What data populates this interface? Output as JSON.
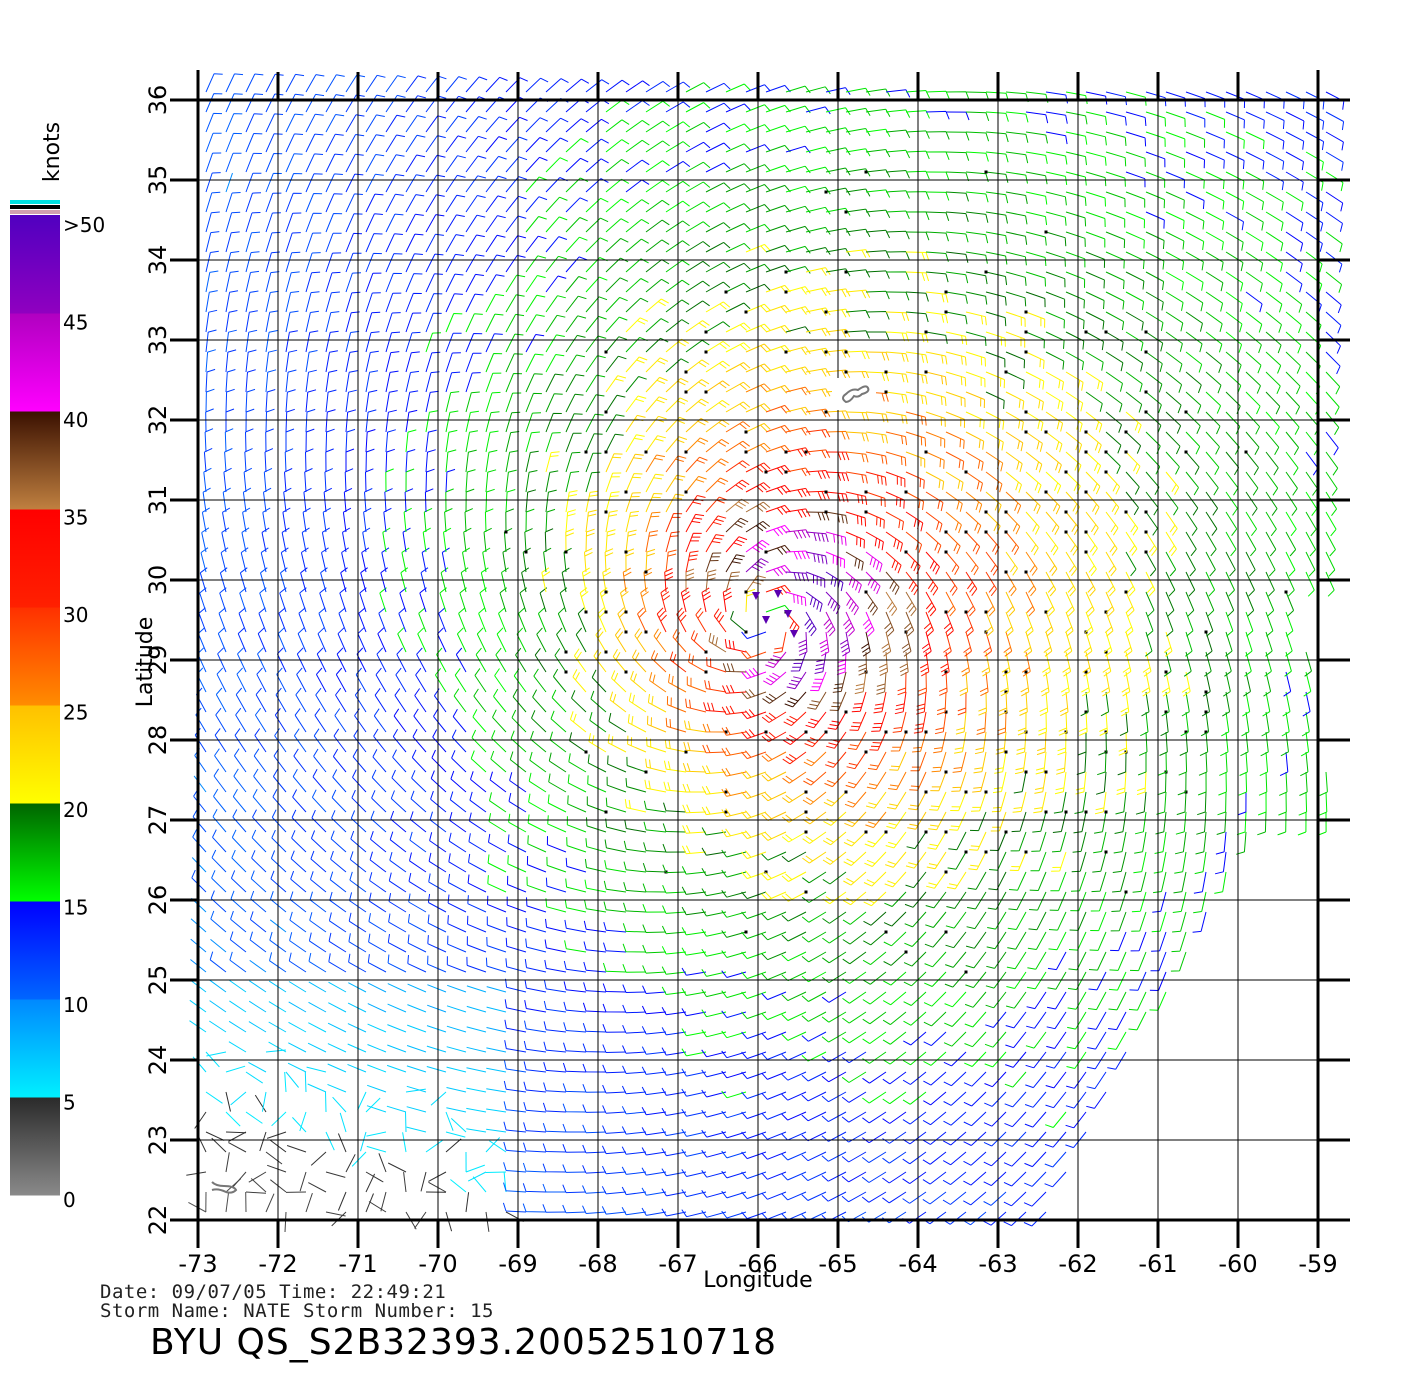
{
  "map": {
    "lon_range": [
      -73,
      -59
    ],
    "lat_range": [
      22,
      36
    ],
    "x_axis_label": "Longitude",
    "y_axis_label": "Latitude",
    "x_ticks": [
      "-73",
      "-72",
      "-71",
      "-70",
      "-69",
      "-68",
      "-67",
      "-66",
      "-65",
      "-64",
      "-63",
      "-62",
      "-61",
      "-60",
      "-59"
    ],
    "y_ticks": [
      "22",
      "23",
      "24",
      "25",
      "26",
      "27",
      "28",
      "29",
      "30",
      "31",
      "32",
      "33",
      "34",
      "35",
      "36"
    ],
    "storm_center": {
      "lon": -65.9,
      "lat": 29.5
    },
    "islands": [
      {
        "name": "Bermuda",
        "lon": -64.8,
        "lat": 32.3
      },
      {
        "name": "Bahamas-edge",
        "lon": -72.8,
        "lat": 22.4
      }
    ]
  },
  "colorbar": {
    "unit_label": "knots",
    "tick_labels": [
      ">50",
      "45",
      "40",
      "35",
      "30",
      "25",
      "20",
      "15",
      "10",
      "5",
      "0"
    ],
    "bands": [
      {
        "from": 0,
        "to": 5,
        "top": "#2a2a2a",
        "bottom": "#8a8a8a"
      },
      {
        "from": 5,
        "to": 10,
        "top": "#0088ff",
        "bottom": "#00f0ff"
      },
      {
        "from": 10,
        "to": 15,
        "top": "#0000ff",
        "bottom": "#0066ff"
      },
      {
        "from": 15,
        "to": 20,
        "top": "#006400",
        "bottom": "#00ff00"
      },
      {
        "from": 20,
        "to": 25,
        "top": "#ffc000",
        "bottom": "#ffff00"
      },
      {
        "from": 25,
        "to": 30,
        "top": "#ff3000",
        "bottom": "#ff8c00"
      },
      {
        "from": 30,
        "to": 35,
        "top": "#ff0000",
        "bottom": "#ff2000"
      },
      {
        "from": 35,
        "to": 40,
        "top": "#3a1000",
        "bottom": "#c08040"
      },
      {
        "from": 40,
        "to": 45,
        "top": "#b000c0",
        "bottom": "#ff00ff"
      },
      {
        "from": 45,
        "to": 50,
        "top": "#5000c0",
        "bottom": "#9000c0"
      }
    ],
    "cap_colors": [
      "#00e0e0",
      "#000000",
      "#d0a0b0"
    ]
  },
  "footer": {
    "line1": "Date: 09/07/05   Time: 22:49:21",
    "line2": "Storm Name: NATE   Storm Number: 15",
    "file_id": "BYU QS_S2B32393.20052510718"
  }
}
